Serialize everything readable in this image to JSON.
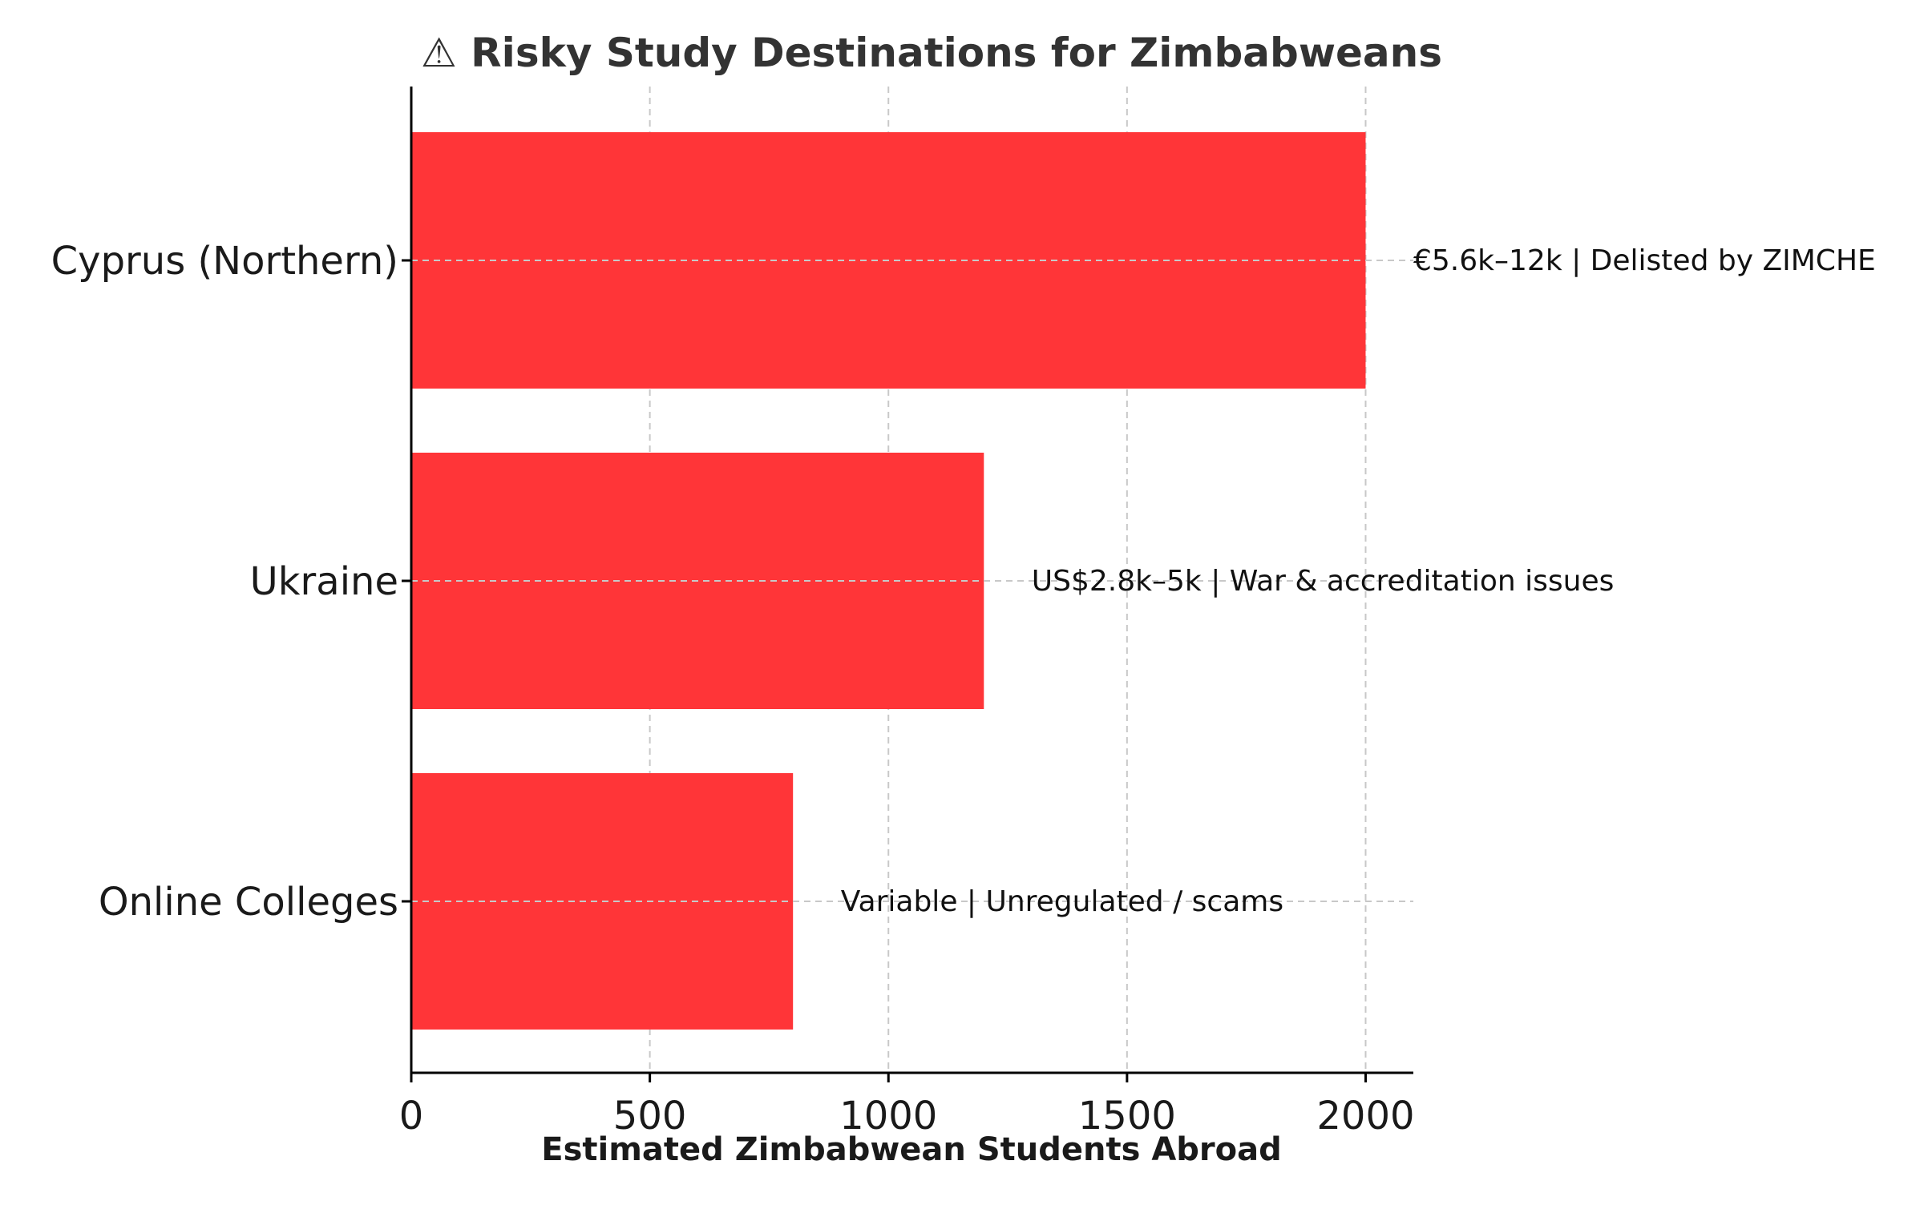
{
  "colors": {
    "bar": "#ff3538",
    "grid": "#c8c8c8",
    "axis": "#000000",
    "title": "#333333"
  },
  "chart_data": {
    "type": "bar",
    "orientation": "horizontal",
    "title": "⚠ Risky Study Destinations for Zimbabweans",
    "xlabel": "Estimated Zimbabwean Students Abroad",
    "ylabel": "",
    "xlim": [
      0,
      2100
    ],
    "xticks": [
      0,
      500,
      1000,
      1500,
      2000
    ],
    "grid": true,
    "categories": [
      "Cyprus (Northern)",
      "Ukraine",
      "Online Colleges"
    ],
    "values": [
      2000,
      1200,
      800
    ],
    "annotations": [
      "€5.6k–12k | Delisted by ZIMCHE",
      "US$2.8k–5k | War & accreditation issues",
      "Variable | Unregulated / scams"
    ]
  }
}
